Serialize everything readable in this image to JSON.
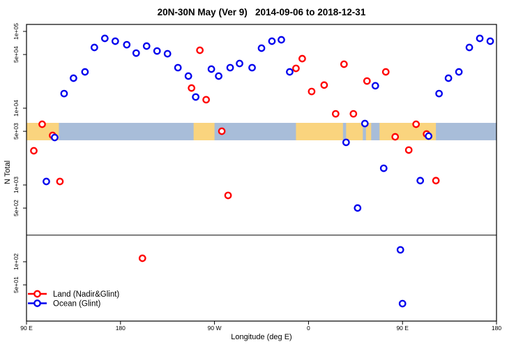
{
  "title": "20N-30N May (Ver 9)   2014-09-06 to 2018-12-31",
  "x_axis": {
    "label": "Longitude (deg E)",
    "ticks": [
      {
        "value": 90,
        "label": "90 E"
      },
      {
        "value": 180,
        "label": "180"
      },
      {
        "value": 270,
        "label": "90 W"
      },
      {
        "value": 360,
        "label": "0"
      },
      {
        "value": 450,
        "label": "90 E"
      },
      {
        "value": 540,
        "label": "180"
      }
    ]
  },
  "y_axis": {
    "label": "N Total",
    "ticks": [
      {
        "value": 100000,
        "label": "1e+05"
      },
      {
        "value": 50000,
        "label": "5e+04"
      },
      {
        "value": 10000,
        "label": "1e+04"
      },
      {
        "value": 5000,
        "label": "5e+03"
      },
      {
        "value": 1000,
        "label": "1e+03"
      },
      {
        "value": 500,
        "label": "5e+02"
      },
      {
        "value": 100,
        "label": "1e+02"
      },
      {
        "value": 50,
        "label": "5e+01"
      }
    ]
  },
  "legend": {
    "items": [
      {
        "label": "Land (Nadir&Glint)",
        "color": "#FF0000"
      },
      {
        "label": "Ocean (Glint)",
        "color": "#0000EE"
      }
    ]
  },
  "colors": {
    "land_point": "#FF0000",
    "ocean_point": "#0000EE",
    "map_land": "#FAD47E",
    "map_ocean": "#A8BDD9",
    "axis": "#000000"
  },
  "chart_data": {
    "type": "scatter",
    "title": "20N-30N May (Ver 9)  2014-09-06 to 2018-12-31",
    "xlabel": "Longitude (deg E)",
    "ylabel": "N Total",
    "x_unit": "deg E unwrapped, axis runs 90E eastward to 180 (540)",
    "xlim": [
      90,
      540
    ],
    "y_scale": "log",
    "reference_line_y": 222,
    "map_band": {
      "value_top": 6440,
      "value_bottom": 3820,
      "ocean_lon_range": [
        90,
        540
      ],
      "land_segments_lon": [
        [
          90,
          121
        ],
        [
          250,
          270
        ],
        [
          348,
          393
        ],
        [
          396,
          412
        ],
        [
          415,
          420
        ],
        [
          428,
          482
        ]
      ]
    },
    "series": [
      {
        "name": "Land (Nadir&Glint)",
        "color": "#FF0000",
        "points": [
          [
            105,
            6180
          ],
          [
            115,
            4420
          ],
          [
            97,
            2790
          ],
          [
            122,
            1110
          ],
          [
            256,
            56800
          ],
          [
            248,
            18300
          ],
          [
            262,
            12900
          ],
          [
            277,
            5010
          ],
          [
            283,
            731
          ],
          [
            348,
            33000
          ],
          [
            354,
            44200
          ],
          [
            363,
            16500
          ],
          [
            375,
            20000
          ],
          [
            386,
            8450
          ],
          [
            394,
            37400
          ],
          [
            403,
            8450
          ],
          [
            416,
            22600
          ],
          [
            434,
            29700
          ],
          [
            443,
            4240
          ],
          [
            456,
            2850
          ],
          [
            463,
            6180
          ],
          [
            473,
            4610
          ],
          [
            482,
            1140
          ],
          [
            201,
            111
          ]
        ]
      },
      {
        "name": "Ocean (Glint)",
        "color": "#0000EE",
        "points": [
          [
            126,
            15500
          ],
          [
            135,
            24600
          ],
          [
            146,
            29700
          ],
          [
            155,
            61800
          ],
          [
            165,
            81100
          ],
          [
            175,
            74600
          ],
          [
            186,
            67100
          ],
          [
            195,
            52200
          ],
          [
            205,
            64400
          ],
          [
            215,
            55600
          ],
          [
            225,
            51200
          ],
          [
            235,
            33700
          ],
          [
            245,
            26200
          ],
          [
            267,
            32300
          ],
          [
            274,
            26200
          ],
          [
            285,
            33700
          ],
          [
            294,
            38200
          ],
          [
            306,
            33700
          ],
          [
            315,
            60500
          ],
          [
            325,
            74600
          ],
          [
            334,
            77800
          ],
          [
            342,
            29700
          ],
          [
            109,
            1110
          ],
          [
            117,
            4150
          ],
          [
            252,
            14000
          ],
          [
            424,
            19600
          ],
          [
            414,
            6310
          ],
          [
            396,
            3590
          ],
          [
            407,
            501
          ],
          [
            432,
            1650
          ],
          [
            467,
            1140
          ],
          [
            475,
            4330
          ],
          [
            485,
            15500
          ],
          [
            494,
            24600
          ],
          [
            504,
            29700
          ],
          [
            514,
            61800
          ],
          [
            524,
            81100
          ],
          [
            534,
            74600
          ],
          [
            448,
            143
          ],
          [
            450,
            28.5
          ]
        ]
      }
    ]
  }
}
